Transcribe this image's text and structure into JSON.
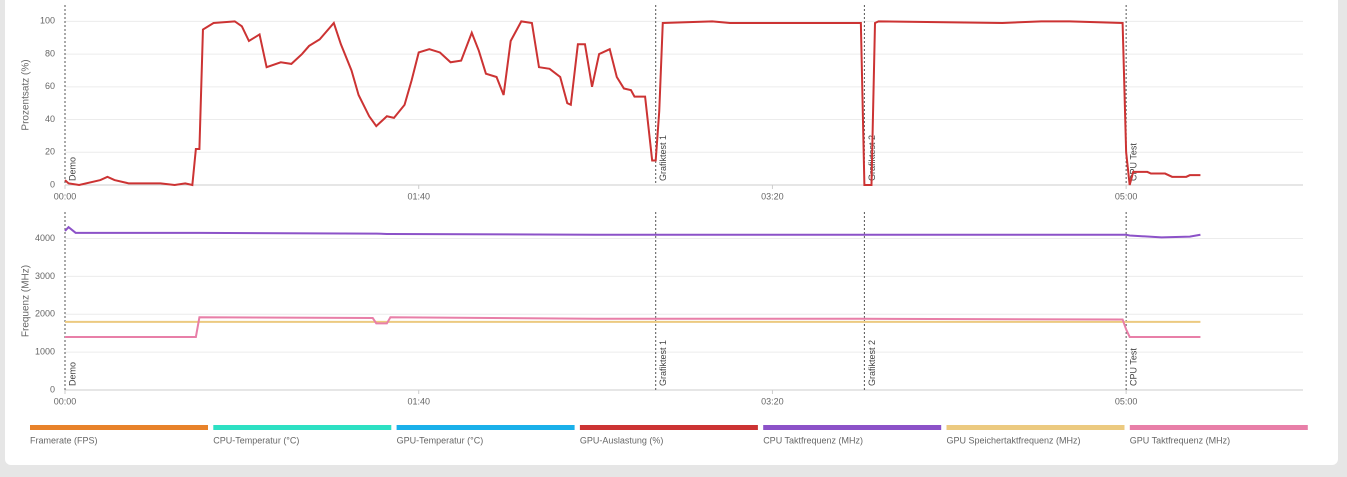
{
  "chart_data": [
    {
      "type": "line",
      "ylabel": "Prozentsatz (%)",
      "xlim": [
        0,
        350
      ],
      "xticks": [
        {
          "value": 0,
          "label": "00:00"
        },
        {
          "value": 100,
          "label": "01:40"
        },
        {
          "value": 200,
          "label": "03:20"
        },
        {
          "value": 300,
          "label": "05:00"
        }
      ],
      "ylim": [
        0,
        110
      ],
      "yticks": [
        0,
        20,
        40,
        60,
        80,
        100
      ],
      "grid": true,
      "x": [
        0,
        1,
        4,
        10,
        12,
        14,
        18,
        27,
        31,
        34,
        36,
        37,
        38,
        39,
        42,
        48,
        50,
        52,
        55,
        57,
        61,
        64,
        67,
        69,
        72,
        76,
        78,
        81,
        83,
        86,
        88,
        91,
        93,
        96,
        98,
        100,
        103,
        106,
        109,
        112,
        115,
        117,
        119,
        122,
        124,
        126,
        129,
        132,
        134,
        137,
        140,
        142,
        143,
        145,
        147,
        149,
        151,
        154,
        156,
        158,
        160,
        161,
        164,
        166,
        167,
        168,
        169,
        183,
        188,
        225,
        226,
        228,
        229,
        230,
        265,
        276,
        284,
        299,
        300,
        301,
        302,
        306,
        307,
        311,
        313,
        317,
        318,
        321
      ],
      "series": [
        {
          "color": "#cc3333",
          "values": [
            3,
            1,
            0,
            3,
            5,
            3,
            1,
            1,
            0,
            1,
            0,
            22,
            22,
            95,
            99,
            100,
            97,
            88,
            92,
            72,
            75,
            74,
            80,
            85,
            89,
            99,
            86,
            70,
            55,
            42,
            36,
            42,
            41,
            49,
            64,
            81,
            83,
            81,
            75,
            76,
            93,
            82,
            68,
            66,
            55,
            88,
            100,
            99,
            72,
            71,
            66,
            50,
            49,
            86,
            86,
            60,
            80,
            83,
            66,
            59,
            58,
            54,
            54,
            15,
            15,
            45,
            99,
            100,
            99,
            99,
            0,
            0,
            99,
            100,
            99,
            100,
            100,
            99,
            20,
            0,
            8,
            8,
            7,
            7,
            5,
            5,
            6,
            6
          ]
        }
      ]
    },
    {
      "type": "line",
      "ylabel": "Frequenz (MHz)",
      "xlim": [
        0,
        350
      ],
      "xticks": [
        {
          "value": 0,
          "label": "00:00"
        },
        {
          "value": 100,
          "label": "01:40"
        },
        {
          "value": 200,
          "label": "03:20"
        },
        {
          "value": 300,
          "label": "05:00"
        }
      ],
      "ylim": [
        0,
        4700
      ],
      "yticks": [
        0,
        1000,
        2000,
        3000,
        4000
      ],
      "grid": true,
      "x": [
        0,
        1,
        3,
        37,
        38,
        87,
        88,
        91,
        92,
        150,
        225,
        299,
        300,
        301,
        310,
        318,
        321
      ],
      "series": [
        {
          "color": "#8c52c8",
          "values": [
            4200,
            4300,
            4150,
            4150,
            4150,
            4130,
            4130,
            4120,
            4120,
            4100,
            4100,
            4100,
            4100,
            4080,
            4030,
            4050,
            4100
          ]
        },
        {
          "color": "#ecca80",
          "values": [
            1800,
            1800,
            1800,
            1800,
            1800,
            1800,
            1800,
            1800,
            1800,
            1800,
            1800,
            1800,
            1800,
            1800,
            1800,
            1800,
            1800
          ]
        },
        {
          "color": "#e87fa8",
          "values": [
            1400,
            1400,
            1400,
            1400,
            1920,
            1900,
            1760,
            1760,
            1920,
            1880,
            1880,
            1860,
            1600,
            1400,
            1400,
            1400,
            1400
          ]
        }
      ]
    }
  ],
  "markers": [
    {
      "label": "Demo",
      "x": 0
    },
    {
      "label": "Grafiktest 1",
      "x": 167
    },
    {
      "label": "Grafiktest 2",
      "x": 226
    },
    {
      "label": "CPU Test",
      "x": 300
    }
  ],
  "legend": [
    {
      "name": "Framerate (FPS)",
      "color": "#e8822a"
    },
    {
      "name": "CPU-Temperatur (°C)",
      "color": "#2de0c3"
    },
    {
      "name": "GPU-Temperatur (°C)",
      "color": "#1ab0ea"
    },
    {
      "name": "GPU-Auslastung (%)",
      "color": "#cc3333"
    },
    {
      "name": "CPU Taktfrequenz (MHz)",
      "color": "#8c52c8"
    },
    {
      "name": "GPU Speichertaktfrequenz (MHz)",
      "color": "#ecca80"
    },
    {
      "name": "GPU Taktfrequenz (MHz)",
      "color": "#e87fa8"
    }
  ]
}
